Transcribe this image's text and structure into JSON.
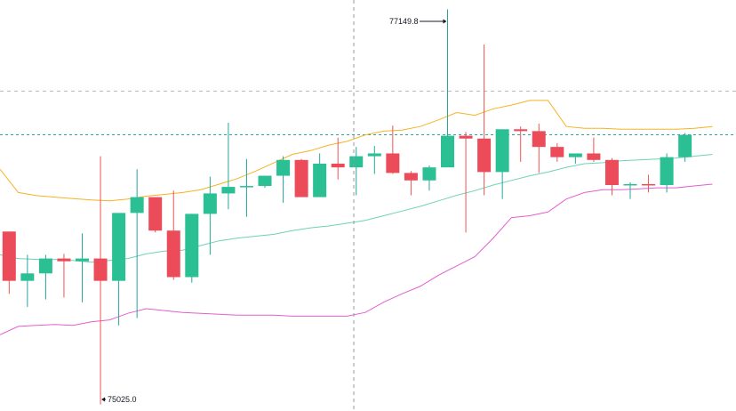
{
  "chart_data": {
    "type": "candlestick",
    "title": "",
    "colors": {
      "up": "#26a69a",
      "up_fill": "#2bbf94",
      "down": "#ef5350",
      "down_fill": "#ec4b59",
      "bb_upper": "#f5b324",
      "bb_middle": "#6dd3b8",
      "bb_lower": "#e45fcf",
      "crosshair": "#9598a1",
      "price_line": "#26a69a"
    },
    "annotations": {
      "high_label": "77149.8",
      "low_label": "75025.0"
    },
    "reference_lines": {
      "dashed_gray_level": 76710,
      "dashed_green_level": 76475
    },
    "y_range": [
      74990,
      77200
    ],
    "candles": [
      {
        "o": 75955,
        "h": 75955,
        "l": 75620,
        "c": 75690
      },
      {
        "o": 75690,
        "h": 75830,
        "l": 75550,
        "c": 75730
      },
      {
        "o": 75730,
        "h": 75830,
        "l": 75590,
        "c": 75810
      },
      {
        "o": 75810,
        "h": 75835,
        "l": 75600,
        "c": 75795
      },
      {
        "o": 75795,
        "h": 75945,
        "l": 75575,
        "c": 75810
      },
      {
        "o": 75810,
        "h": 76360,
        "l": 75025,
        "c": 75690
      },
      {
        "o": 75690,
        "h": 76040,
        "l": 75450,
        "c": 76055
      },
      {
        "o": 76055,
        "h": 76290,
        "l": 75490,
        "c": 76140
      },
      {
        "o": 76140,
        "h": 76140,
        "l": 75950,
        "c": 75960
      },
      {
        "o": 75960,
        "h": 76175,
        "l": 75695,
        "c": 75710
      },
      {
        "o": 75710,
        "h": 76050,
        "l": 75680,
        "c": 76050
      },
      {
        "o": 76050,
        "h": 76250,
        "l": 75830,
        "c": 76160
      },
      {
        "o": 76160,
        "h": 76540,
        "l": 76075,
        "c": 76195
      },
      {
        "o": 76195,
        "h": 76345,
        "l": 76035,
        "c": 76200
      },
      {
        "o": 76200,
        "h": 76240,
        "l": 76190,
        "c": 76255
      },
      {
        "o": 76255,
        "h": 76360,
        "l": 76110,
        "c": 76340
      },
      {
        "o": 76340,
        "h": 76345,
        "l": 76150,
        "c": 76140
      },
      {
        "o": 76140,
        "h": 76375,
        "l": 76150,
        "c": 76320
      },
      {
        "o": 76320,
        "h": 76460,
        "l": 76235,
        "c": 76300
      },
      {
        "o": 76300,
        "h": 76410,
        "l": 76150,
        "c": 76360
      },
      {
        "o": 76360,
        "h": 76415,
        "l": 76265,
        "c": 76375
      },
      {
        "o": 76375,
        "h": 76525,
        "l": 76265,
        "c": 76270
      },
      {
        "o": 76270,
        "h": 76280,
        "l": 76150,
        "c": 76230
      },
      {
        "o": 76230,
        "h": 76310,
        "l": 76175,
        "c": 76300
      },
      {
        "o": 76300,
        "h": 77149.8,
        "l": 76315,
        "c": 76470
      },
      {
        "o": 76470,
        "h": 76490,
        "l": 75950,
        "c": 76455
      },
      {
        "o": 76455,
        "h": 76960,
        "l": 76150,
        "c": 76275
      },
      {
        "o": 76275,
        "h": 76500,
        "l": 76130,
        "c": 76505
      },
      {
        "o": 76505,
        "h": 76520,
        "l": 76330,
        "c": 76495
      },
      {
        "o": 76495,
        "h": 76535,
        "l": 76270,
        "c": 76410
      },
      {
        "o": 76410,
        "h": 76430,
        "l": 76330,
        "c": 76355
      },
      {
        "o": 76355,
        "h": 76360,
        "l": 76320,
        "c": 76375
      },
      {
        "o": 76375,
        "h": 76460,
        "l": 76330,
        "c": 76340
      },
      {
        "o": 76340,
        "h": 76350,
        "l": 76150,
        "c": 76205
      },
      {
        "o": 76205,
        "h": 76220,
        "l": 76130,
        "c": 76210
      },
      {
        "o": 76210,
        "h": 76260,
        "l": 76165,
        "c": 76205
      },
      {
        "o": 76205,
        "h": 76375,
        "l": 76165,
        "c": 76355
      },
      {
        "o": 76355,
        "h": 76485,
        "l": 76330,
        "c": 76475
      }
    ],
    "bb_upper": [
      76290,
      76165,
      76148,
      76140,
      76132,
      76125,
      76120,
      76130,
      76145,
      76155,
      76165,
      76180,
      76210,
      76240,
      76280,
      76325,
      76370,
      76390,
      76420,
      76440,
      76475,
      76495,
      76500,
      76520,
      76555,
      76595,
      76580,
      76615,
      76635,
      76660,
      76660,
      76520,
      76510,
      76510,
      76505,
      76505,
      76505,
      76505,
      76510,
      76520
    ],
    "bb_middle": [
      75830,
      75810,
      75805,
      75805,
      75800,
      75790,
      75800,
      75810,
      75835,
      75850,
      75855,
      75880,
      75905,
      75920,
      75930,
      75940,
      75960,
      75975,
      75985,
      76000,
      76015,
      76040,
      76065,
      76090,
      76120,
      76150,
      76175,
      76205,
      76230,
      76255,
      76275,
      76300,
      76320,
      76325,
      76335,
      76340,
      76345,
      76350,
      76360,
      76370
    ],
    "bb_lower": [
      75400,
      75445,
      75450,
      75455,
      75450,
      75470,
      75480,
      75515,
      75540,
      75530,
      75520,
      75515,
      75510,
      75505,
      75505,
      75505,
      75500,
      75500,
      75500,
      75500,
      75520,
      75575,
      75620,
      75660,
      75720,
      75770,
      75820,
      75920,
      76030,
      76040,
      76060,
      76130,
      76165,
      76180,
      76180,
      76185,
      76190,
      76190,
      76200,
      76210
    ]
  }
}
